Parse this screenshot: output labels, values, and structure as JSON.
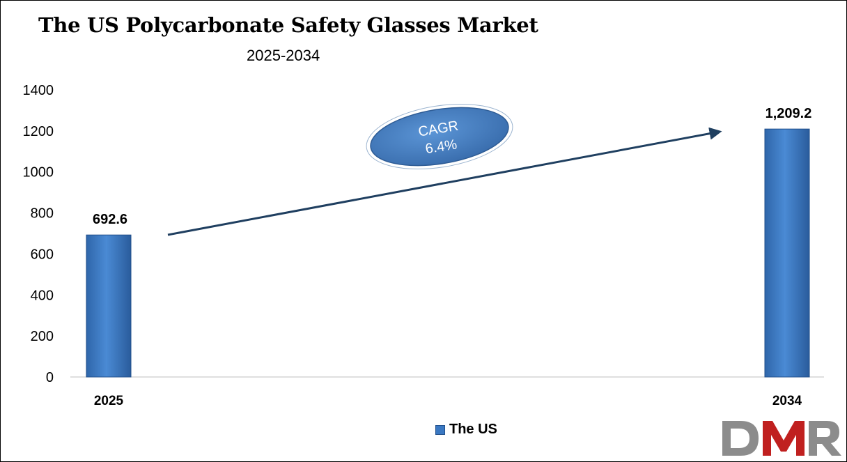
{
  "title": "The US Polycarbonate Safety Glasses Market",
  "subtitle": "2025-2034",
  "colors": {
    "bar": "#3a78c2",
    "bar_dark": "#1f4e8a",
    "arrow": "#1f3f60",
    "logo_gray": "#8c8c8c",
    "logo_red": "#c0201f"
  },
  "cagr": {
    "label": "CAGR",
    "value": "6.4%"
  },
  "legend": {
    "label": "The US"
  },
  "logo": {
    "text": "DMR"
  },
  "chart_data": {
    "type": "bar",
    "categories": [
      "2025",
      "2034"
    ],
    "series": [
      {
        "name": "The US",
        "values": [
          692.6,
          1209.2
        ]
      }
    ],
    "data_labels": [
      "692.6",
      "1,209.2"
    ],
    "y_ticks": [
      0,
      200,
      400,
      600,
      800,
      1000,
      1200,
      1400
    ],
    "ylim": [
      0,
      1400
    ],
    "xlabel": "",
    "ylabel": "",
    "grid": false,
    "legend_position": "bottom"
  }
}
